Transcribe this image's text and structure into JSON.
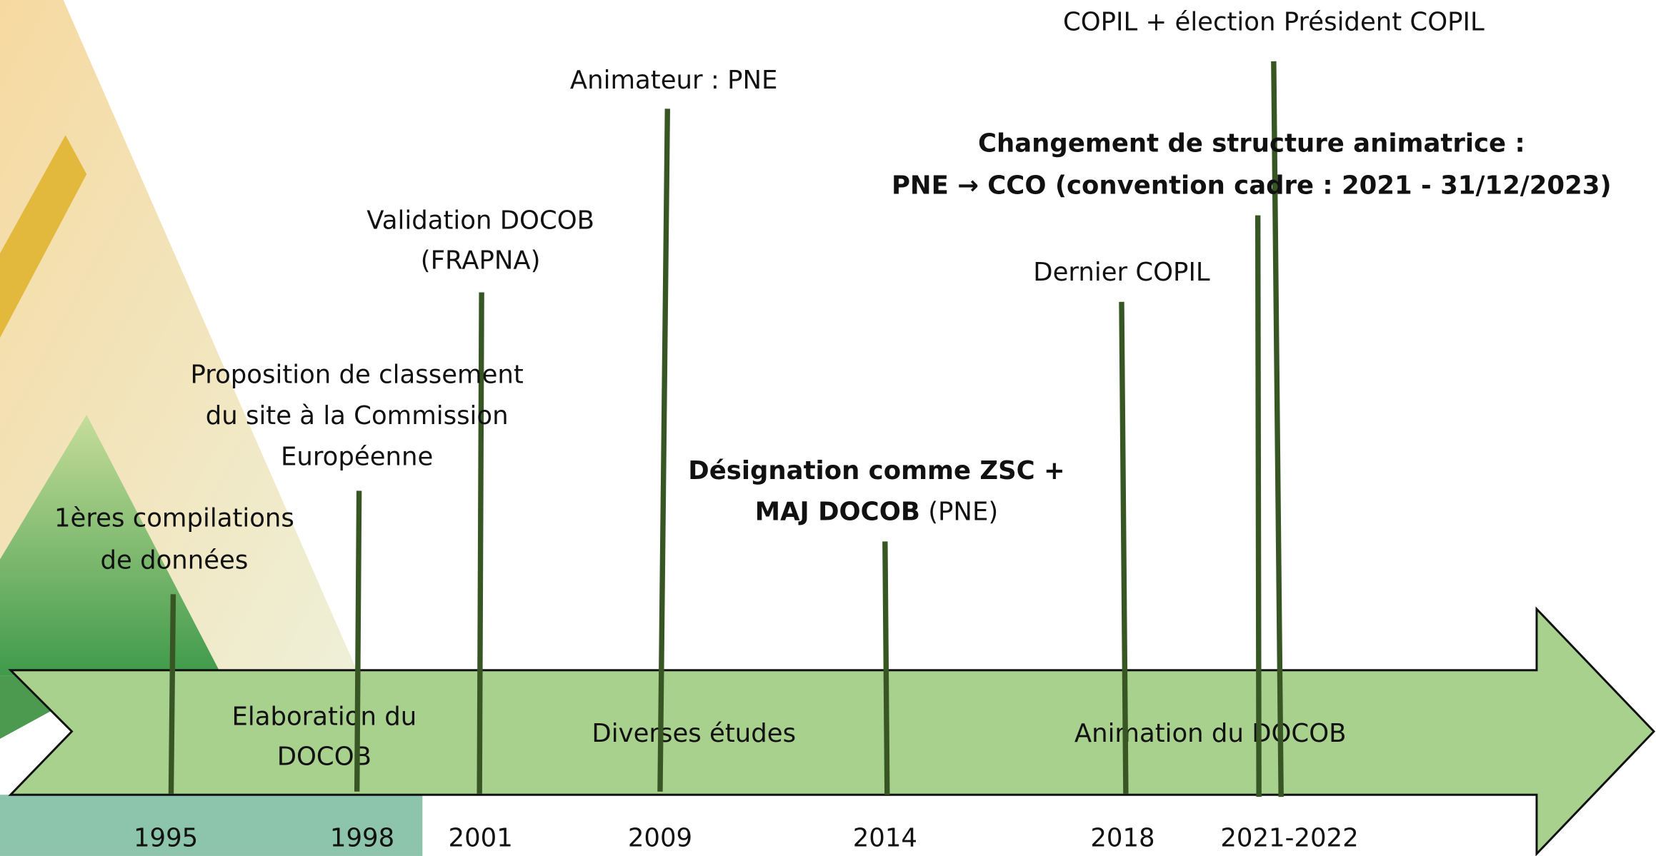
{
  "timeline": {
    "years": [
      "1995",
      "1998",
      "2001",
      "2009",
      "2014",
      "2018",
      "2021-2022"
    ],
    "events": [
      {
        "lines": [
          "1ères compilations",
          "de données"
        ]
      },
      {
        "lines": [
          "Proposition de classement",
          "du site à la Commission",
          "Européenne"
        ]
      },
      {
        "lines": [
          "Validation DOCOB",
          "(FRAPNA)"
        ]
      },
      {
        "lines": [
          "Animateur : PNE"
        ]
      },
      {
        "lines": [
          "Désignation comme ZSC +",
          "MAJ DOCOB"
        ],
        "suffix": "(PNE)"
      },
      {
        "lines": [
          "Dernier COPIL"
        ]
      },
      {
        "lines": [
          "Changement de structure animatrice :",
          "PNE → CCO (convention cadre : 2021 - 31/12/2023)"
        ]
      },
      {
        "lines": [
          "COPIL + élection Président COPIL"
        ]
      }
    ],
    "phases": [
      {
        "lines": [
          "Elaboration du",
          "DOCOB"
        ]
      },
      {
        "lines": [
          "Diverses études"
        ]
      },
      {
        "lines": [
          "Animation du DOCOB"
        ]
      }
    ]
  }
}
